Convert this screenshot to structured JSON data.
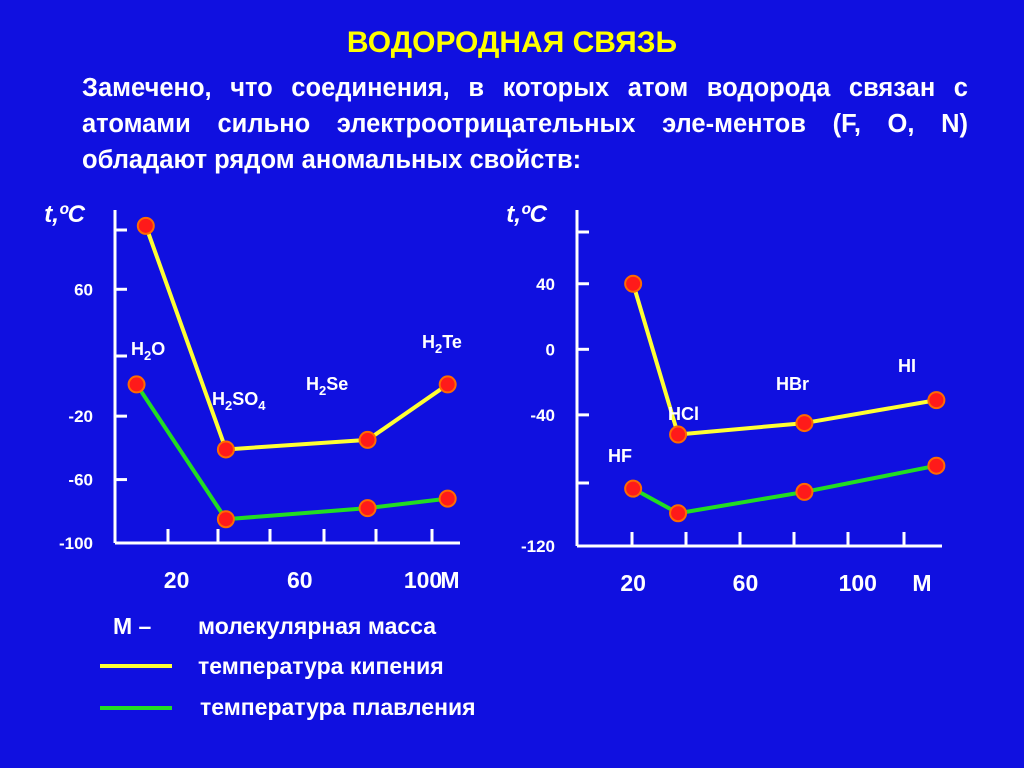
{
  "title": "ВОДОРОДНАЯ СВЯЗЬ",
  "intro": "Замечено, что соединения, в которых атом водорода связан с атомами сильно электроотрицательных эле-ментов (F, O, N) обладают рядом аномальных свойств:",
  "colors": {
    "background": "#1010e0",
    "boiling": "#ffff33",
    "melting": "#22dd22",
    "marker": "#ff1a1a",
    "title": "#ffff00",
    "axis": "#ffffff"
  },
  "legend": {
    "m_symbol": "М –",
    "m_text": "молекулярная масса",
    "boiling": "температура кипения",
    "melting": "температура плавления"
  },
  "chart_data": [
    {
      "type": "line",
      "ylabel": "t,ºC",
      "xlabel": "M",
      "y_ticks": [
        -100,
        -60,
        -20,
        60
      ],
      "x_ticks": [
        20,
        60,
        100
      ],
      "ylim": [
        -100,
        110
      ],
      "xlim": [
        0,
        112
      ],
      "compound_labels": [
        {
          "base": "H",
          "sub": "2",
          "tail": "O"
        },
        {
          "base": "H",
          "sub": "2",
          "tail": "SO",
          "sub2": "4"
        },
        {
          "base": "H",
          "sub": "2",
          "tail": "Se"
        },
        {
          "base": "H",
          "sub": "2",
          "tail": "Te"
        }
      ],
      "series": [
        {
          "key": "boiling",
          "x": [
            10,
            36,
            82,
            108
          ],
          "y": [
            100,
            -41,
            -35,
            0
          ]
        },
        {
          "key": "melting",
          "x": [
            7,
            36,
            82,
            108
          ],
          "y": [
            0,
            -85,
            -78,
            -72
          ]
        }
      ]
    },
    {
      "type": "line",
      "ylabel": "t,ºC",
      "xlabel": "M",
      "y_ticks": [
        -120,
        -40,
        0,
        40
      ],
      "x_ticks": [
        20,
        60,
        100
      ],
      "ylim": [
        -120,
        85
      ],
      "xlim": [
        0,
        130
      ],
      "compound_labels": [
        {
          "base": "HF"
        },
        {
          "base": "HCl"
        },
        {
          "base": "HBr"
        },
        {
          "base": "HI"
        }
      ],
      "series": [
        {
          "key": "boiling",
          "x": [
            20,
            36,
            81,
            128
          ],
          "y": [
            40,
            -52,
            -45,
            -31
          ]
        },
        {
          "key": "melting",
          "x": [
            20,
            36,
            81,
            128
          ],
          "y": [
            -85,
            -100,
            -87,
            -71
          ]
        }
      ]
    }
  ]
}
